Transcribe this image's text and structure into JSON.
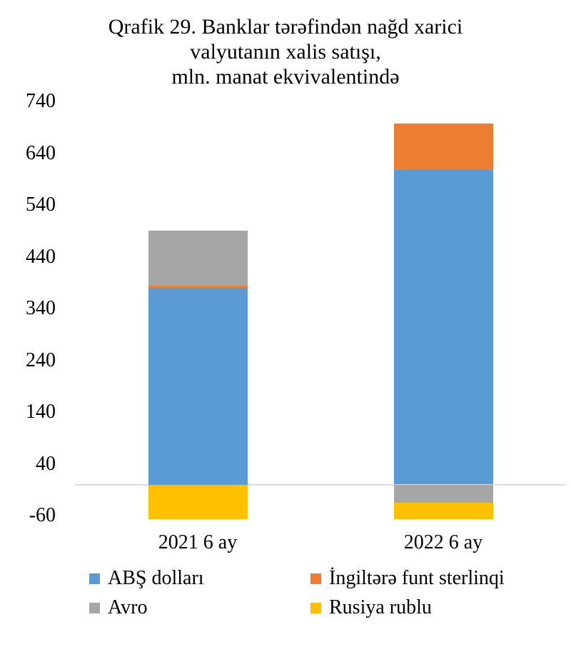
{
  "page": {
    "background": "#ffffff"
  },
  "chart_data": {
    "type": "bar",
    "stacked": true,
    "title_lines": [
      "Qrafik 29. Banklar tərəfindən nağd xarici",
      "valyutanın xalis satışı,",
      "mln. manat ekvivalentində"
    ],
    "categories": [
      "2021 6 ay",
      "2022 6 ay"
    ],
    "series": [
      {
        "name": "ABŞ dolları",
        "color": "#5B9BD5",
        "values": [
          380,
          608
        ]
      },
      {
        "name": "İngiltərə funt sterlinqi",
        "color": "#ED7D31",
        "values": [
          4,
          89
        ]
      },
      {
        "name": "Avro",
        "color": "#A6A6A6",
        "values": [
          107,
          -35
        ]
      },
      {
        "name": "Rusiya rublu",
        "color": "#FFC000",
        "values": [
          -67,
          -32
        ]
      }
    ],
    "xlabel": "",
    "ylabel": "",
    "y_ticks": [
      740,
      640,
      540,
      440,
      340,
      240,
      140,
      40,
      -60
    ],
    "ylim": [
      -70,
      750
    ],
    "grid": false,
    "axis_line_color": "#D9D9D9",
    "text_color": "#000000",
    "legend_position": "bottom",
    "legend_columns": 2
  }
}
